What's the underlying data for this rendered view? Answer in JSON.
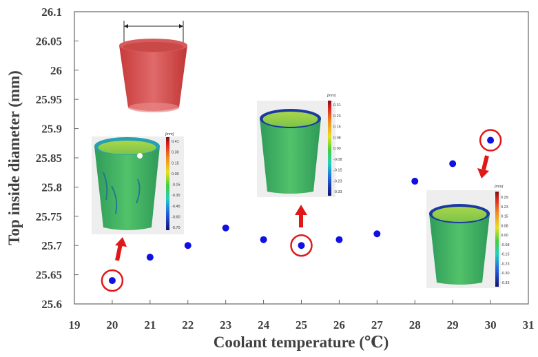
{
  "chart_data": {
    "type": "scatter",
    "title": "",
    "xlabel": "Coolant temperature (℃)",
    "ylabel": "Top inside diameter (mm)",
    "xlim": [
      19,
      31
    ],
    "ylim": [
      25.6,
      26.1
    ],
    "xticks": [
      "19",
      "20",
      "21",
      "22",
      "23",
      "24",
      "25",
      "26",
      "27",
      "28",
      "29",
      "30",
      "31"
    ],
    "yticks": [
      "25.6",
      "25.65",
      "25.7",
      "25.75",
      "25.8",
      "25.85",
      "25.9",
      "25.95",
      "26",
      "26.05",
      "26.1"
    ],
    "grid": false,
    "legend": "none",
    "point_color": "#1010e0",
    "highlight_color": "#e01818",
    "series": [
      {
        "x": [
          20,
          21,
          22,
          23,
          24,
          25,
          26,
          27,
          28,
          29,
          30
        ],
        "y": [
          25.64,
          25.68,
          25.7,
          25.73,
          25.71,
          25.7,
          25.71,
          25.72,
          25.81,
          25.84,
          25.88
        ]
      }
    ],
    "highlighted_x": [
      20,
      25,
      30
    ]
  },
  "insets": {
    "unit": "[mm]",
    "left_scale": [
      "0.41",
      "0.30",
      "0.15",
      "0.00",
      "-0.15",
      "-0.30",
      "-0.45",
      "-0.60",
      "-0.70"
    ],
    "middle_scale": [
      "0.31",
      "0.23",
      "0.15",
      "0.08",
      "0.00",
      "-0.08",
      "-0.15",
      "-0.23",
      "-0.33"
    ],
    "right_scale": [
      "0.29",
      "0.23",
      "0.15",
      "0.08",
      "0.00",
      "-0.08",
      "-0.15",
      "-0.23",
      "-0.30",
      "-0.33"
    ]
  }
}
